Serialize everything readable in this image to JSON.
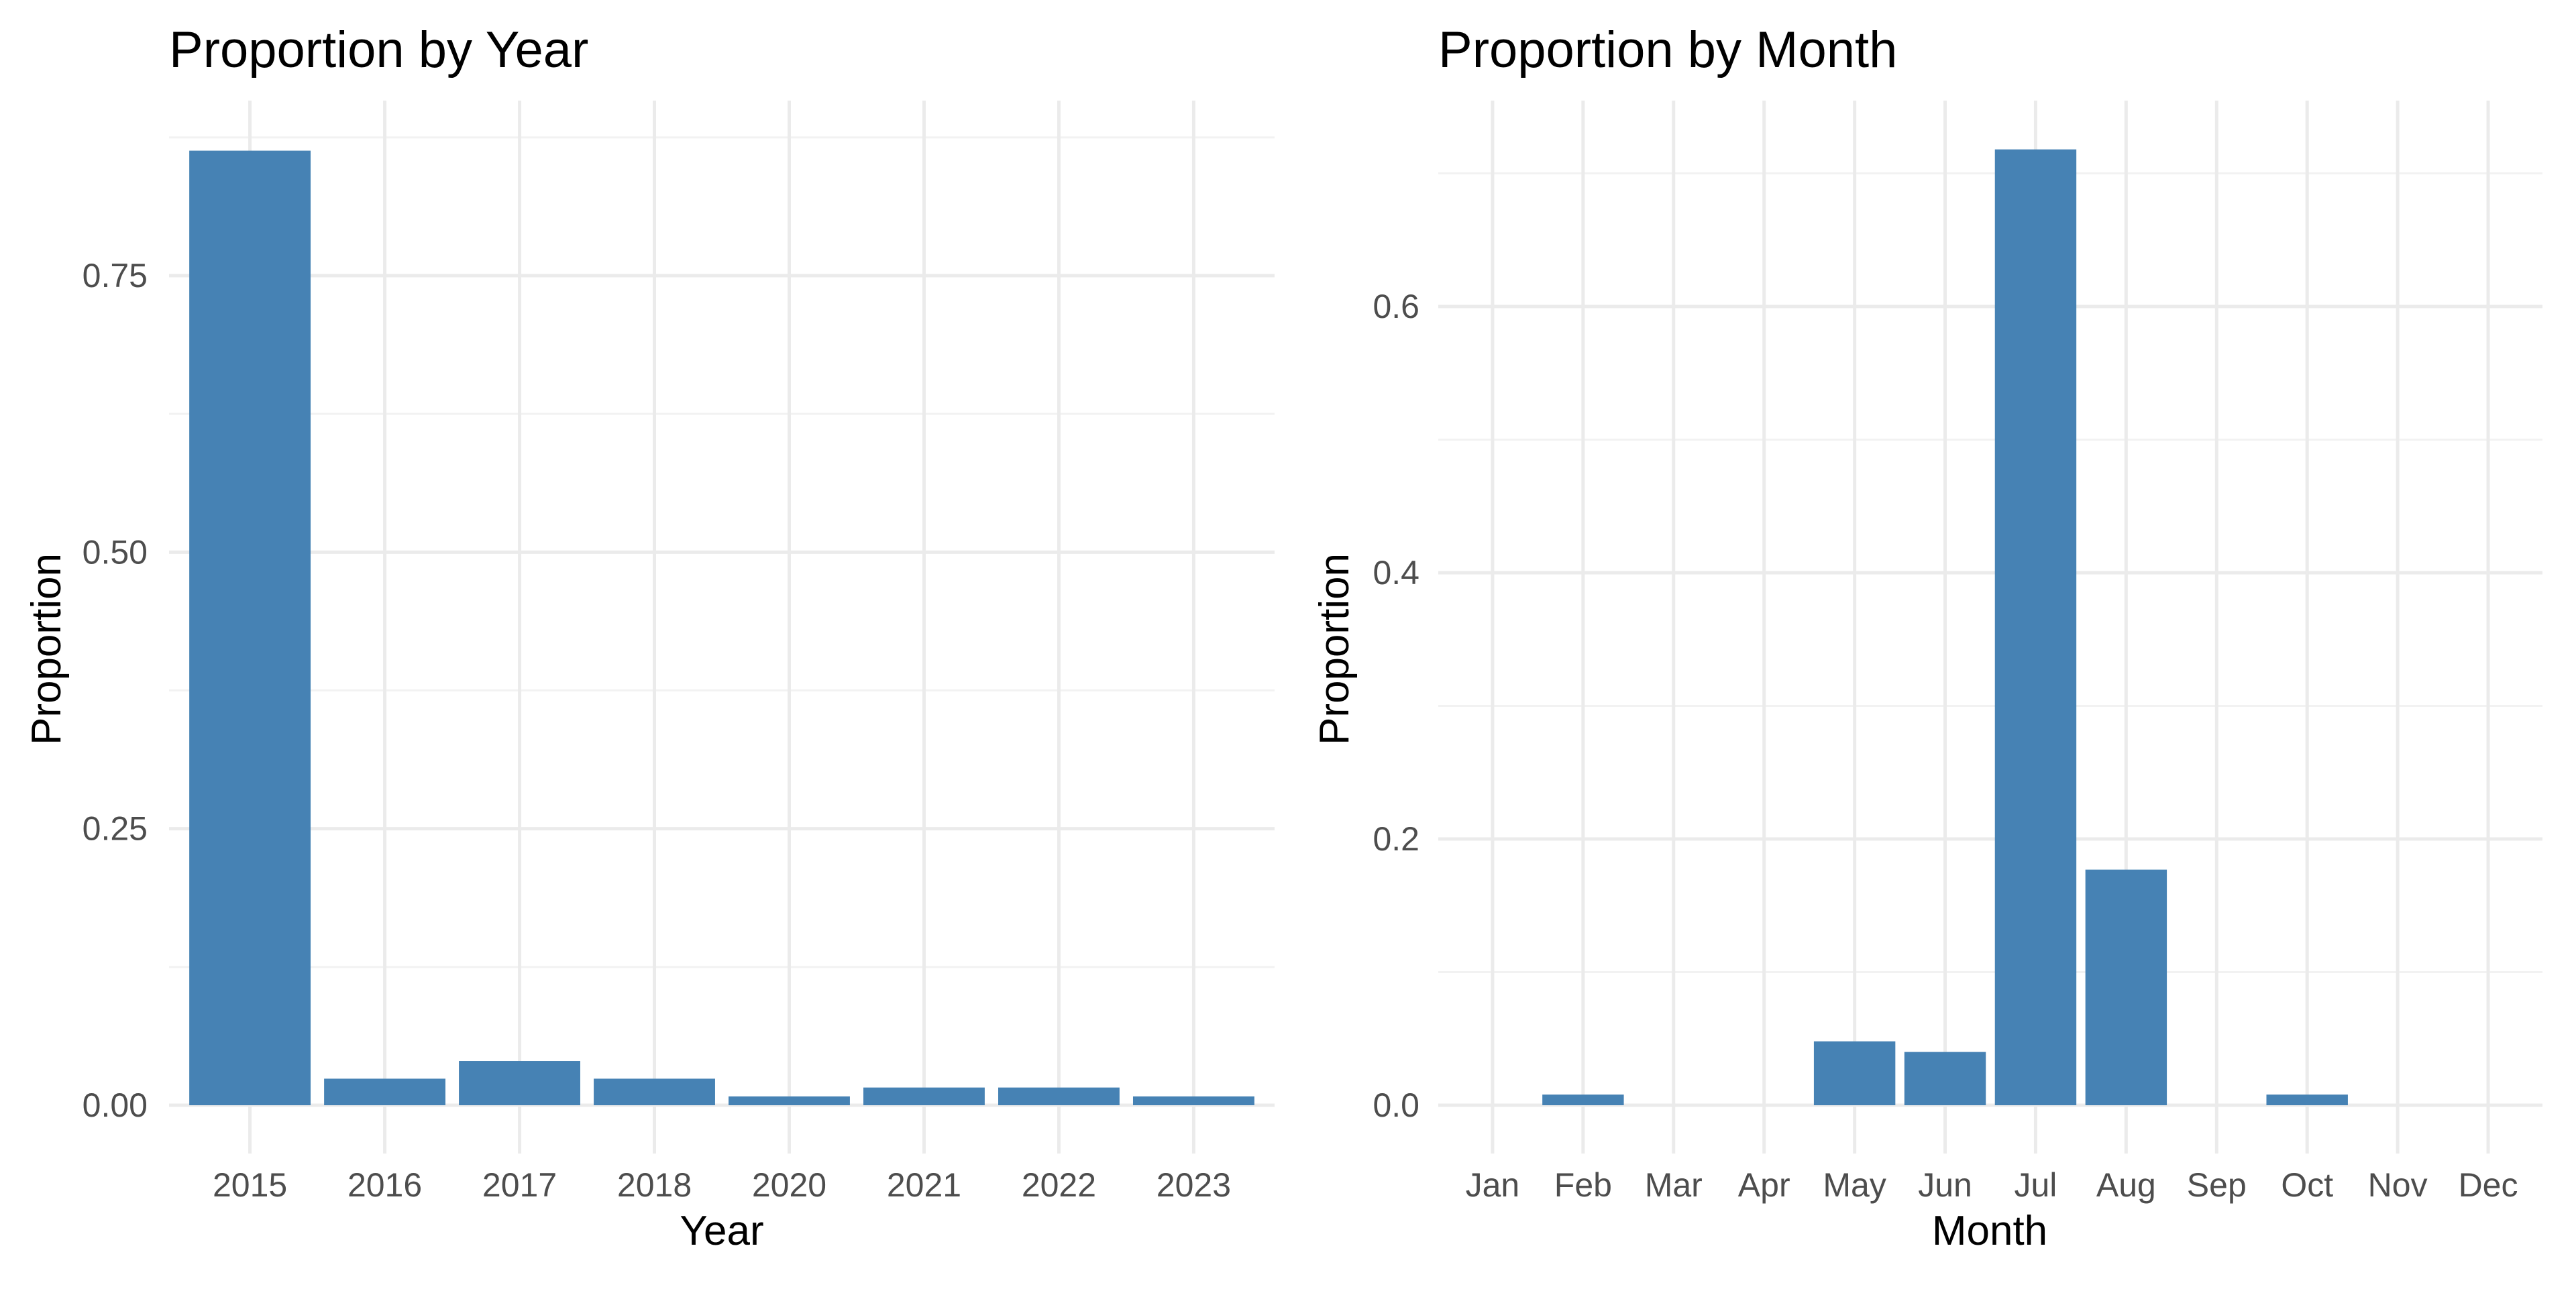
{
  "chart_data": [
    {
      "type": "bar",
      "title": "Proportion by Year",
      "xlabel": "Year",
      "ylabel": "Proportion",
      "categories": [
        "2015",
        "2016",
        "2017",
        "2018",
        "2020",
        "2021",
        "2022",
        "2023"
      ],
      "values": [
        0.863,
        0.024,
        0.04,
        0.024,
        0.008,
        0.016,
        0.016,
        0.008
      ],
      "ylim": [
        0,
        0.9
      ],
      "yticks": [
        0,
        0.25,
        0.5,
        0.75
      ],
      "ytick_labels": [
        "0.00",
        "0.25",
        "0.50",
        "0.75"
      ],
      "grid": true,
      "legend": "none",
      "bar_color": "#4682b4"
    },
    {
      "type": "bar",
      "title": "Proportion by Month",
      "xlabel": "Month",
      "ylabel": "Proportion",
      "categories": [
        "Jan",
        "Feb",
        "Mar",
        "Apr",
        "May",
        "Jun",
        "Jul",
        "Aug",
        "Sep",
        "Oct",
        "Nov",
        "Dec"
      ],
      "values": [
        0,
        0.008,
        0,
        0,
        0.048,
        0.04,
        0.718,
        0.177,
        0,
        0.008,
        0,
        0
      ],
      "ylim": [
        0,
        0.75
      ],
      "yticks": [
        0,
        0.2,
        0.4,
        0.6
      ],
      "ytick_labels": [
        "0.0",
        "0.2",
        "0.4",
        "0.6"
      ],
      "grid": true,
      "legend": "none",
      "bar_color": "#4682b4"
    }
  ]
}
